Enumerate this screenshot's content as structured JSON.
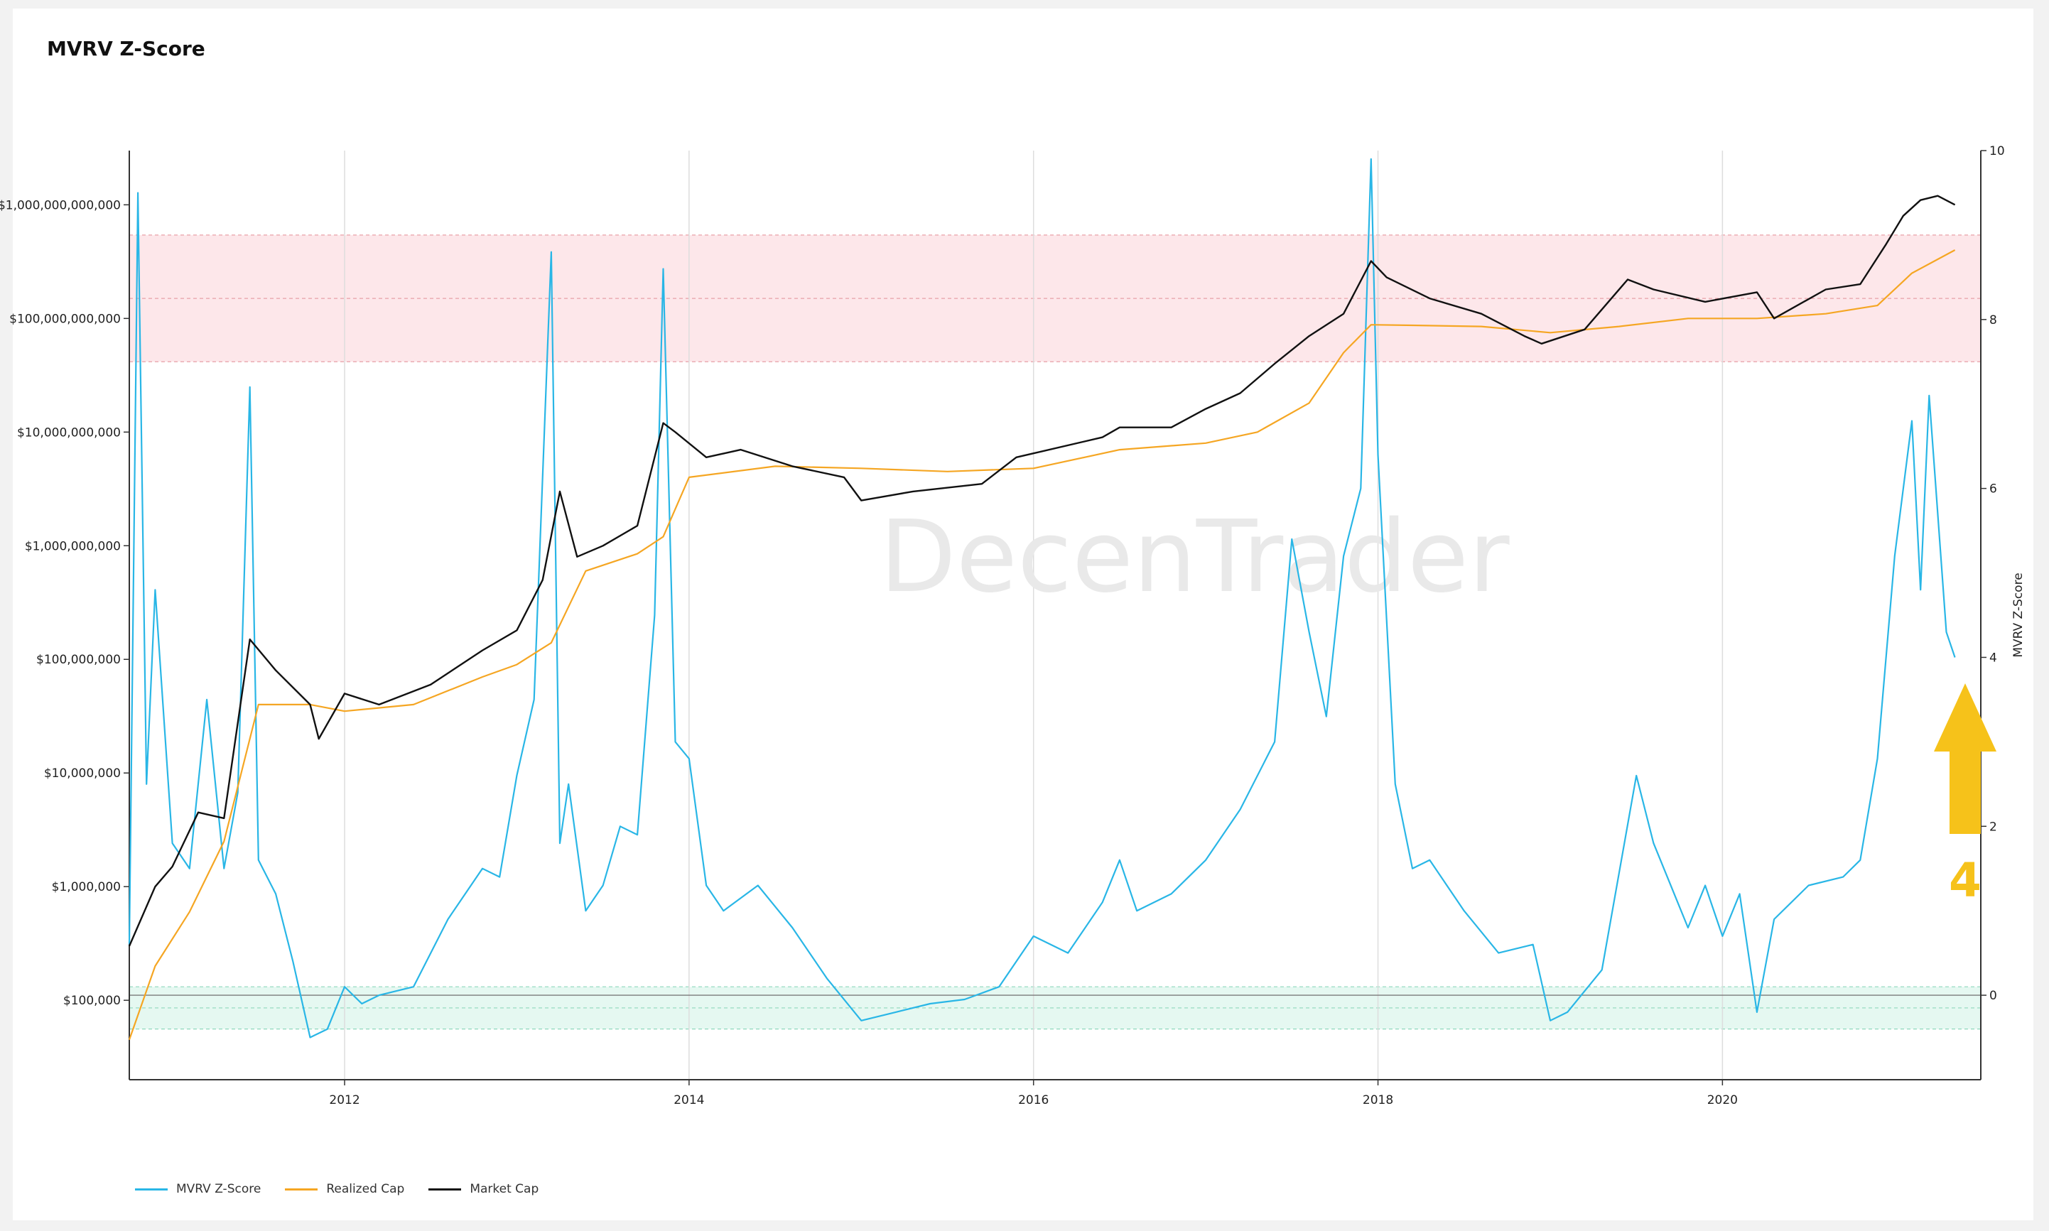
{
  "title": "MVRV Z-Score",
  "watermark": "DecenTrader",
  "annotation_label": "4",
  "colors": {
    "mvrv": "#29b6e6",
    "realized": "#f5a623",
    "market": "#111111",
    "red_band": "#fde7ea",
    "green_band": "#e5f8f1",
    "arrow": "#f6c21a",
    "grid": "#dddddd"
  },
  "chart_data": {
    "type": "line",
    "title": "MVRV Z-Score",
    "x_ticks": [
      "2012",
      "2014",
      "2016",
      "2018",
      "2020"
    ],
    "x_range": [
      2010.75,
      2021.5
    ],
    "y_left": {
      "scale": "log",
      "range": [
        20000,
        3000000000000
      ],
      "ticks": [
        {
          "value": 100000,
          "label": "$100,000"
        },
        {
          "value": 1000000,
          "label": "$1,000,000"
        },
        {
          "value": 10000000,
          "label": "$10,000,000"
        },
        {
          "value": 100000000,
          "label": "$100,000,000"
        },
        {
          "value": 1000000000,
          "label": "$1,000,000,000"
        },
        {
          "value": 10000000000,
          "label": "$10,000,000,000"
        },
        {
          "value": 100000000000,
          "label": "$100,000,000,000"
        },
        {
          "value": 1000000000000,
          "label": "$1,000,000,000,000"
        }
      ]
    },
    "y_right": {
      "label": "MVRV Z-Score",
      "range": [
        -1,
        10
      ],
      "ticks": [
        0,
        2,
        4,
        6,
        8,
        10
      ]
    },
    "bands": [
      {
        "axis": "right",
        "from": 7.5,
        "to": 9.0,
        "color": "red"
      },
      {
        "axis": "right",
        "from": -0.4,
        "to": 0.1,
        "color": "green"
      }
    ],
    "series": [
      {
        "name": "MVRV Z-Score",
        "axis": "right",
        "x": [
          2010.75,
          2010.8,
          2010.85,
          2010.9,
          2011.0,
          2011.1,
          2011.2,
          2011.3,
          2011.38,
          2011.45,
          2011.5,
          2011.6,
          2011.7,
          2011.8,
          2011.9,
          2012.0,
          2012.1,
          2012.2,
          2012.4,
          2012.6,
          2012.8,
          2012.9,
          2013.0,
          2013.1,
          2013.2,
          2013.25,
          2013.3,
          2013.4,
          2013.5,
          2013.6,
          2013.7,
          2013.8,
          2013.85,
          2013.92,
          2014.0,
          2014.1,
          2014.2,
          2014.4,
          2014.6,
          2014.8,
          2015.0,
          2015.2,
          2015.4,
          2015.6,
          2015.8,
          2016.0,
          2016.2,
          2016.4,
          2016.5,
          2016.6,
          2016.8,
          2017.0,
          2017.2,
          2017.4,
          2017.5,
          2017.6,
          2017.7,
          2017.8,
          2017.9,
          2017.96,
          2018.0,
          2018.1,
          2018.2,
          2018.3,
          2018.5,
          2018.7,
          2018.9,
          2019.0,
          2019.1,
          2019.3,
          2019.5,
          2019.6,
          2019.8,
          2019.9,
          2020.0,
          2020.1,
          2020.2,
          2020.3,
          2020.5,
          2020.7,
          2020.8,
          2020.9,
          2021.0,
          2021.1,
          2021.15,
          2021.2,
          2021.3,
          2021.35
        ],
        "values": [
          0.6,
          9.5,
          2.5,
          4.8,
          1.8,
          1.5,
          3.5,
          1.5,
          2.4,
          7.2,
          1.6,
          1.2,
          0.4,
          -0.5,
          -0.4,
          0.1,
          -0.1,
          0.0,
          0.1,
          0.9,
          1.5,
          1.4,
          2.6,
          3.5,
          8.8,
          1.8,
          2.5,
          1.0,
          1.3,
          2.0,
          1.9,
          4.5,
          8.6,
          3.0,
          2.8,
          1.3,
          1.0,
          1.3,
          0.8,
          0.2,
          -0.3,
          -0.2,
          -0.1,
          -0.05,
          0.1,
          0.7,
          0.5,
          1.1,
          1.6,
          1.0,
          1.2,
          1.6,
          2.2,
          3.0,
          5.4,
          4.3,
          3.3,
          5.2,
          6.0,
          9.9,
          6.4,
          2.5,
          1.5,
          1.6,
          1.0,
          0.5,
          0.6,
          -0.3,
          -0.2,
          0.3,
          2.6,
          1.8,
          0.8,
          1.3,
          0.7,
          1.2,
          -0.2,
          0.9,
          1.3,
          1.4,
          1.6,
          2.8,
          5.2,
          6.8,
          4.8,
          7.1,
          4.3,
          4.0
        ]
      },
      {
        "name": "Realized Cap",
        "axis": "left",
        "x": [
          2010.75,
          2010.9,
          2011.1,
          2011.3,
          2011.5,
          2011.8,
          2012.0,
          2012.4,
          2012.8,
          2013.0,
          2013.2,
          2013.4,
          2013.7,
          2013.85,
          2014.0,
          2014.5,
          2015.0,
          2015.5,
          2016.0,
          2016.5,
          2017.0,
          2017.3,
          2017.6,
          2017.8,
          2017.96,
          2018.2,
          2018.6,
          2019.0,
          2019.4,
          2019.8,
          2020.2,
          2020.6,
          2020.9,
          2021.1,
          2021.35
        ],
        "values": [
          45000,
          200000,
          600000,
          2500000,
          40000000,
          40000000,
          35000000,
          40000000,
          70000000,
          90000000,
          140000000,
          600000000,
          850000000,
          1200000000,
          4000000000,
          5000000000,
          4800000000,
          4500000000,
          4800000000,
          7000000000,
          8000000000,
          10000000000,
          18000000000,
          50000000000,
          88000000000,
          87000000000,
          85000000000,
          75000000000,
          85000000000,
          100000000000,
          100000000000,
          110000000000,
          130000000000,
          250000000000,
          400000000000
        ]
      },
      {
        "name": "Market Cap",
        "axis": "left",
        "x": [
          2010.75,
          2010.9,
          2011.0,
          2011.15,
          2011.3,
          2011.45,
          2011.6,
          2011.8,
          2011.85,
          2012.0,
          2012.2,
          2012.5,
          2012.8,
          2013.0,
          2013.15,
          2013.25,
          2013.35,
          2013.5,
          2013.7,
          2013.85,
          2013.92,
          2014.1,
          2014.3,
          2014.6,
          2014.9,
          2015.0,
          2015.3,
          2015.7,
          2015.9,
          2016.0,
          2016.4,
          2016.5,
          2016.8,
          2017.0,
          2017.2,
          2017.4,
          2017.6,
          2017.8,
          2017.96,
          2018.05,
          2018.3,
          2018.6,
          2018.85,
          2018.95,
          2019.2,
          2019.45,
          2019.6,
          2019.9,
          2020.2,
          2020.3,
          2020.6,
          2020.8,
          2020.95,
          2021.05,
          2021.15,
          2021.25,
          2021.35
        ],
        "values": [
          300000,
          1000000,
          1500000,
          4500000,
          4000000,
          150000000,
          80000000,
          40000000,
          20000000,
          50000000,
          40000000,
          60000000,
          120000000,
          180000000,
          500000000,
          3000000000,
          800000000,
          1000000000,
          1500000000,
          12000000000,
          10000000000,
          6000000000,
          7000000000,
          5000000000,
          4000000000,
          2500000000,
          3000000000,
          3500000000,
          6000000000,
          6500000000,
          9000000000,
          11000000000,
          11000000000,
          16000000000,
          22000000000,
          40000000000,
          70000000000,
          110000000000,
          320000000000,
          230000000000,
          150000000000,
          110000000000,
          70000000000,
          60000000000,
          80000000000,
          220000000000,
          180000000000,
          140000000000,
          170000000000,
          100000000000,
          180000000000,
          200000000000,
          450000000000,
          800000000000,
          1100000000000,
          1200000000000,
          1000000000000
        ]
      }
    ]
  }
}
